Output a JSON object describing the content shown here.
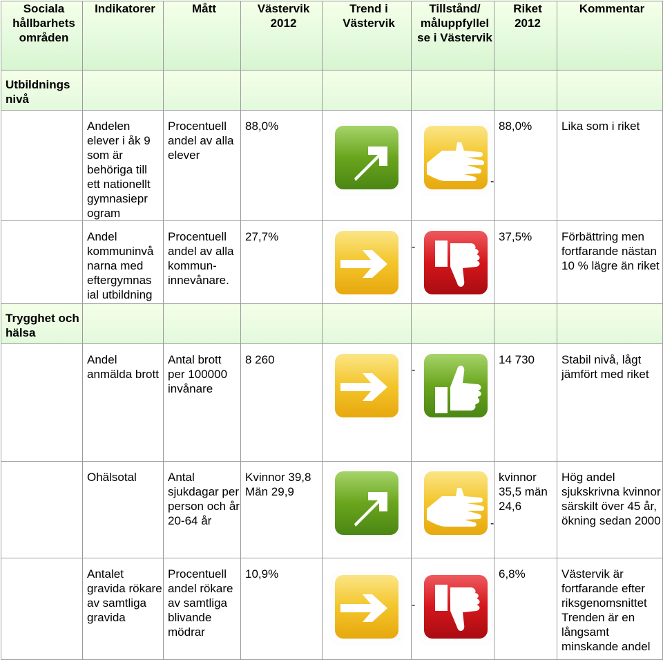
{
  "headers": {
    "area": "Sociala hållbarhets områden",
    "indicator": "Indikatorer",
    "measure": "Mått",
    "vastervik": "Västervik 2012",
    "trend": "Trend i Västervik",
    "status": "Tillstånd/ måluppfyllel se i Västervik",
    "riket": "Riket 2012",
    "comment": "Kommentar"
  },
  "sections": [
    {
      "area": "Utbildnings nivå",
      "rows": [
        {
          "indicator": "Andelen elever i åk 9 som är behöriga till ett nationellt gymnasiepr ogram",
          "measure": "Procentuell andel av alla elever",
          "vastervik": "88,0%",
          "trend_icon": "arrow-up-right-icon",
          "trend_color": "green",
          "status_icon": "flat-hand-icon",
          "status_color": "yellow",
          "dash": "-",
          "riket": "88,0%",
          "comment": "Lika som i riket"
        },
        {
          "indicator": "Andel kommuninvå narna med eftergymnas ial utbildning",
          "measure": "Procentuell andel av alla kommun-innevånare.",
          "vastervik": "27,7%",
          "trend_icon": "arrow-right-icon",
          "trend_color": "yellow",
          "status_icon": "thumbs-down-icon",
          "status_color": "red",
          "dash": "-",
          "riket": "37,5%",
          "comment": "Förbättring men fortfarande nästan 10 % lägre än riket"
        }
      ]
    },
    {
      "area": "Trygghet och hälsa",
      "rows": [
        {
          "indicator": "Andel anmälda brott",
          "measure": "Antal brott per 100000 invånare",
          "vastervik": "8 260",
          "trend_icon": "arrow-right-icon",
          "trend_color": "yellow",
          "status_icon": "thumbs-up-icon",
          "status_color": "green",
          "dash": "-",
          "riket": "14 730",
          "comment": "Stabil nivå, lågt jämfört med riket"
        },
        {
          "indicator": "Ohälsotal",
          "measure": "Antal sjukdagar per person och år 20-64 år",
          "vastervik": "Kvinnor 39,8 Män 29,9",
          "trend_icon": "arrow-up-right-icon",
          "trend_color": "green",
          "status_icon": "flat-hand-icon",
          "status_color": "yellow",
          "dash": "-",
          "riket": "kvinnor 35,5 män 24,6",
          "comment": "Hög andel sjukskrivna kvinnor särskilt över 45 år, ökning sedan 2000"
        },
        {
          "indicator": "Antalet gravida rökare av samtliga gravida",
          "measure": "Procentuell andel rökare av samtliga blivande mödrar",
          "vastervik": "10,9%",
          "trend_icon": "arrow-right-icon",
          "trend_color": "yellow",
          "status_icon": "thumbs-down-icon",
          "status_color": "red",
          "dash": "-",
          "riket": "6,8%",
          "comment": "Västervik är fortfarande efter riksgenomsnittet Trenden är en långsamt minskande andel"
        }
      ]
    }
  ],
  "colors": {
    "green": "#6aa51e",
    "yellow": "#f3c52a",
    "red": "#d4161c"
  }
}
